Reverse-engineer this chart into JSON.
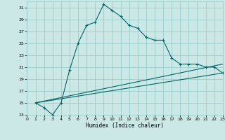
{
  "xlabel": "Humidex (Indice chaleur)",
  "bg_color": "#cce8e6",
  "grid_color": "#8cc8c4",
  "line_color": "#006666",
  "xlim": [
    0,
    23
  ],
  "ylim": [
    13,
    32
  ],
  "yticks": [
    13,
    15,
    17,
    19,
    21,
    23,
    25,
    27,
    29,
    31
  ],
  "xticks": [
    0,
    1,
    2,
    3,
    4,
    5,
    6,
    7,
    8,
    9,
    10,
    11,
    12,
    13,
    14,
    15,
    16,
    17,
    18,
    19,
    20,
    21,
    22,
    23
  ],
  "curve_x": [
    1,
    2,
    3,
    4,
    5,
    6,
    7,
    8,
    9,
    10,
    11,
    12,
    13,
    14,
    15,
    16,
    17,
    18,
    19,
    20,
    21,
    22,
    23
  ],
  "curve_y": [
    15.0,
    14.2,
    13.0,
    15.0,
    20.5,
    25.0,
    28.0,
    28.5,
    31.5,
    30.5,
    29.5,
    28.0,
    27.5,
    26.0,
    25.5,
    25.5,
    22.5,
    21.5,
    21.5,
    21.5,
    21.0,
    21.0,
    20.0
  ],
  "line2_x": [
    1,
    23
  ],
  "line2_y": [
    15.0,
    21.5
  ],
  "line3_x": [
    1,
    23
  ],
  "line3_y": [
    15.0,
    20.0
  ],
  "figw": 3.2,
  "figh": 2.0,
  "dpi": 100
}
